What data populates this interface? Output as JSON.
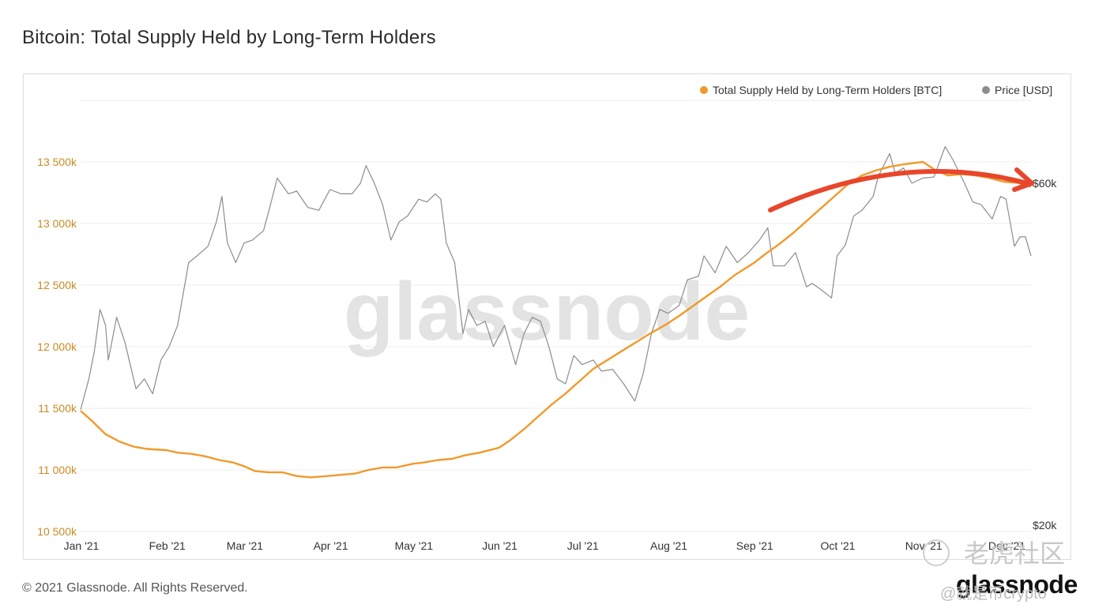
{
  "title": "Bitcoin: Total Supply Held by Long-Term Holders",
  "footer": "© 2021 Glassnode. All Rights Reserved.",
  "brand": "glassnode",
  "watermark": {
    "center_text": "glassnode",
    "cn_text": "老虎社区",
    "handle": "@就是币crypto"
  },
  "colors": {
    "supply": "#f09a2c",
    "price": "#8c8c8c",
    "arrow": "#e8462b",
    "left_axis": "#c98a22",
    "grid": "#ececec"
  },
  "chart_data": {
    "type": "line",
    "title": "Bitcoin: Total Supply Held by Long-Term Holders",
    "x_ticks": [
      "Jan '21",
      "Feb '21",
      "Mar '21",
      "Apr '21",
      "May '21",
      "Jun '21",
      "Jul '21",
      "Aug '21",
      "Sep '21",
      "Oct '21",
      "Nov '21",
      "Dec '21"
    ],
    "y_left": {
      "ticks": [
        10500000,
        11000000,
        11500000,
        12000000,
        12500000,
        13000000,
        13500000
      ],
      "tick_labels": [
        "10 500k",
        "11 000k",
        "11 500k",
        "12 000k",
        "12 500k",
        "13 000k",
        "13 500k"
      ],
      "range": [
        10500000,
        14000000
      ]
    },
    "y_right": {
      "scale": "log",
      "tick_labels": [
        "$20k",
        "$60k"
      ],
      "ticks": [
        20000,
        60000
      ]
    },
    "legend": {
      "position": "top-right",
      "entries": [
        "Total Supply Held by Long-Term Holders [BTC]",
        "Price [USD]"
      ]
    },
    "grid": true,
    "series": [
      {
        "name": "Total Supply Held by Long-Term Holders [BTC]",
        "axis": "left",
        "points": [
          [
            "2021-01-01",
            11480000
          ],
          [
            "2021-01-05",
            11400000
          ],
          [
            "2021-01-10",
            11290000
          ],
          [
            "2021-01-15",
            11230000
          ],
          [
            "2021-01-20",
            11190000
          ],
          [
            "2021-01-25",
            11170000
          ],
          [
            "2021-02-01",
            11160000
          ],
          [
            "2021-02-05",
            11140000
          ],
          [
            "2021-02-10",
            11130000
          ],
          [
            "2021-02-15",
            11110000
          ],
          [
            "2021-02-20",
            11080000
          ],
          [
            "2021-02-25",
            11060000
          ],
          [
            "2021-03-01",
            11030000
          ],
          [
            "2021-03-05",
            10990000
          ],
          [
            "2021-03-10",
            10980000
          ],
          [
            "2021-03-15",
            10980000
          ],
          [
            "2021-03-20",
            10950000
          ],
          [
            "2021-03-25",
            10940000
          ],
          [
            "2021-03-31",
            10950000
          ],
          [
            "2021-04-05",
            10960000
          ],
          [
            "2021-04-10",
            10970000
          ],
          [
            "2021-04-15",
            11000000
          ],
          [
            "2021-04-20",
            11020000
          ],
          [
            "2021-04-25",
            11020000
          ],
          [
            "2021-05-01",
            11050000
          ],
          [
            "2021-05-05",
            11060000
          ],
          [
            "2021-05-10",
            11080000
          ],
          [
            "2021-05-15",
            11090000
          ],
          [
            "2021-05-20",
            11120000
          ],
          [
            "2021-05-25",
            11140000
          ],
          [
            "2021-06-01",
            11180000
          ],
          [
            "2021-06-05",
            11240000
          ],
          [
            "2021-06-10",
            11330000
          ],
          [
            "2021-06-15",
            11430000
          ],
          [
            "2021-06-20",
            11530000
          ],
          [
            "2021-06-25",
            11620000
          ],
          [
            "2021-07-01",
            11740000
          ],
          [
            "2021-07-05",
            11820000
          ],
          [
            "2021-07-10",
            11890000
          ],
          [
            "2021-07-15",
            11960000
          ],
          [
            "2021-07-20",
            12030000
          ],
          [
            "2021-07-25",
            12100000
          ],
          [
            "2021-08-01",
            12190000
          ],
          [
            "2021-08-05",
            12250000
          ],
          [
            "2021-08-10",
            12330000
          ],
          [
            "2021-08-15",
            12410000
          ],
          [
            "2021-08-20",
            12490000
          ],
          [
            "2021-08-25",
            12580000
          ],
          [
            "2021-09-01",
            12680000
          ],
          [
            "2021-09-05",
            12750000
          ],
          [
            "2021-09-10",
            12830000
          ],
          [
            "2021-09-15",
            12920000
          ],
          [
            "2021-09-20",
            13020000
          ],
          [
            "2021-09-25",
            13120000
          ],
          [
            "2021-10-01",
            13240000
          ],
          [
            "2021-10-05",
            13320000
          ],
          [
            "2021-10-10",
            13390000
          ],
          [
            "2021-10-15",
            13430000
          ],
          [
            "2021-10-20",
            13460000
          ],
          [
            "2021-10-25",
            13480000
          ],
          [
            "2021-11-01",
            13500000
          ],
          [
            "2021-11-05",
            13440000
          ],
          [
            "2021-11-10",
            13390000
          ],
          [
            "2021-11-15",
            13400000
          ],
          [
            "2021-11-20",
            13390000
          ],
          [
            "2021-11-25",
            13370000
          ],
          [
            "2021-11-30",
            13340000
          ],
          [
            "2021-12-05",
            13330000
          ],
          [
            "2021-12-10",
            13300000
          ]
        ]
      },
      {
        "name": "Price [USD]",
        "axis": "right",
        "points": [
          [
            "2021-01-01",
            29000
          ],
          [
            "2021-01-04",
            32000
          ],
          [
            "2021-01-06",
            35000
          ],
          [
            "2021-01-08",
            40000
          ],
          [
            "2021-01-10",
            38000
          ],
          [
            "2021-01-11",
            34000
          ],
          [
            "2021-01-14",
            39000
          ],
          [
            "2021-01-17",
            36000
          ],
          [
            "2021-01-21",
            31000
          ],
          [
            "2021-01-24",
            32000
          ],
          [
            "2021-01-27",
            30500
          ],
          [
            "2021-01-30",
            34000
          ],
          [
            "2021-02-02",
            35500
          ],
          [
            "2021-02-05",
            38000
          ],
          [
            "2021-02-09",
            46500
          ],
          [
            "2021-02-12",
            47500
          ],
          [
            "2021-02-16",
            49000
          ],
          [
            "2021-02-19",
            53000
          ],
          [
            "2021-02-21",
            57500
          ],
          [
            "2021-02-23",
            49500
          ],
          [
            "2021-02-26",
            46500
          ],
          [
            "2021-03-01",
            49500
          ],
          [
            "2021-03-04",
            50000
          ],
          [
            "2021-03-08",
            51500
          ],
          [
            "2021-03-10",
            55000
          ],
          [
            "2021-03-13",
            61000
          ],
          [
            "2021-03-17",
            58000
          ],
          [
            "2021-03-20",
            58500
          ],
          [
            "2021-03-24",
            55500
          ],
          [
            "2021-03-28",
            55000
          ],
          [
            "2021-04-01",
            58800
          ],
          [
            "2021-04-05",
            58000
          ],
          [
            "2021-04-09",
            58000
          ],
          [
            "2021-04-12",
            60000
          ],
          [
            "2021-04-14",
            63500
          ],
          [
            "2021-04-17",
            60000
          ],
          [
            "2021-04-20",
            56000
          ],
          [
            "2021-04-23",
            50000
          ],
          [
            "2021-04-26",
            53000
          ],
          [
            "2021-04-29",
            54000
          ],
          [
            "2021-05-03",
            57000
          ],
          [
            "2021-05-06",
            56500
          ],
          [
            "2021-05-09",
            58000
          ],
          [
            "2021-05-11",
            57000
          ],
          [
            "2021-05-13",
            49500
          ],
          [
            "2021-05-16",
            46500
          ],
          [
            "2021-05-19",
            37000
          ],
          [
            "2021-05-21",
            40000
          ],
          [
            "2021-05-24",
            38000
          ],
          [
            "2021-05-27",
            38500
          ],
          [
            "2021-05-30",
            35500
          ],
          [
            "2021-06-03",
            38000
          ],
          [
            "2021-06-07",
            33500
          ],
          [
            "2021-06-10",
            37000
          ],
          [
            "2021-06-13",
            39000
          ],
          [
            "2021-06-16",
            38500
          ],
          [
            "2021-06-19",
            35500
          ],
          [
            "2021-06-22",
            32000
          ],
          [
            "2021-06-25",
            31500
          ],
          [
            "2021-06-28",
            34500
          ],
          [
            "2021-07-01",
            33500
          ],
          [
            "2021-07-05",
            34000
          ],
          [
            "2021-07-08",
            32800
          ],
          [
            "2021-07-12",
            33000
          ],
          [
            "2021-07-16",
            31500
          ],
          [
            "2021-07-20",
            29800
          ],
          [
            "2021-07-23",
            32500
          ],
          [
            "2021-07-26",
            37000
          ],
          [
            "2021-07-29",
            40000
          ],
          [
            "2021-08-01",
            39500
          ],
          [
            "2021-08-05",
            40500
          ],
          [
            "2021-08-08",
            44000
          ],
          [
            "2021-08-12",
            44500
          ],
          [
            "2021-08-14",
            47500
          ],
          [
            "2021-08-18",
            45000
          ],
          [
            "2021-08-22",
            49000
          ],
          [
            "2021-08-26",
            46500
          ],
          [
            "2021-08-30",
            48000
          ],
          [
            "2021-09-03",
            50000
          ],
          [
            "2021-09-06",
            52000
          ],
          [
            "2021-09-08",
            46000
          ],
          [
            "2021-09-12",
            46000
          ],
          [
            "2021-09-16",
            48000
          ],
          [
            "2021-09-20",
            43000
          ],
          [
            "2021-09-22",
            43500
          ],
          [
            "2021-09-25",
            42700
          ],
          [
            "2021-09-29",
            41500
          ],
          [
            "2021-10-01",
            47500
          ],
          [
            "2021-10-04",
            49200
          ],
          [
            "2021-10-07",
            54000
          ],
          [
            "2021-10-10",
            55000
          ],
          [
            "2021-10-14",
            57500
          ],
          [
            "2021-10-16",
            61500
          ],
          [
            "2021-10-20",
            66000
          ],
          [
            "2021-10-22",
            62000
          ],
          [
            "2021-10-25",
            63000
          ],
          [
            "2021-10-28",
            60000
          ],
          [
            "2021-11-01",
            61000
          ],
          [
            "2021-11-05",
            61200
          ],
          [
            "2021-11-09",
            67500
          ],
          [
            "2021-11-12",
            64500
          ],
          [
            "2021-11-16",
            60000
          ],
          [
            "2021-11-19",
            56500
          ],
          [
            "2021-11-22",
            56000
          ],
          [
            "2021-11-26",
            53500
          ],
          [
            "2021-11-29",
            57500
          ],
          [
            "2021-12-01",
            57000
          ],
          [
            "2021-12-04",
            49000
          ],
          [
            "2021-12-06",
            50500
          ],
          [
            "2021-12-08",
            50500
          ],
          [
            "2021-12-10",
            47500
          ]
        ]
      }
    ]
  }
}
